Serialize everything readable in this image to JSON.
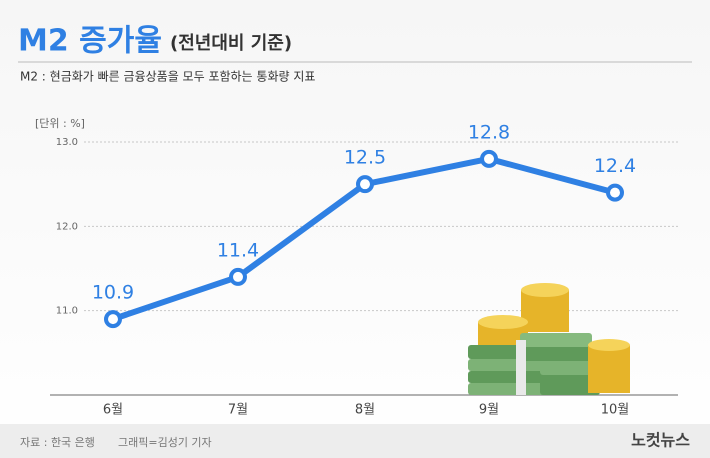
{
  "chart_data": {
    "type": "line",
    "title": "M2 증가율",
    "subtitle": "(전년대비 기준)",
    "description": "M2 : 현금화가 빠른 금융상품을 모두 포함하는 통화량 지표",
    "unit_label": "[단위 : %]",
    "categories": [
      "6월",
      "7월",
      "8월",
      "9월",
      "10월"
    ],
    "series": [
      {
        "name": "M2 증가율",
        "color": "#2f80e3",
        "values": [
          10.9,
          11.4,
          12.5,
          12.8,
          12.4
        ]
      }
    ],
    "ylim": [
      10,
      13
    ],
    "yticks": [
      {
        "value": 11,
        "label": "11.0"
      },
      {
        "value": 12,
        "label": "12.0"
      },
      {
        "value": 13,
        "label": "13.0"
      }
    ],
    "grid": true,
    "source": "자료 : 한국 은행",
    "credit": "그래픽=김성기 기자",
    "logo": "노컷뉴스"
  }
}
